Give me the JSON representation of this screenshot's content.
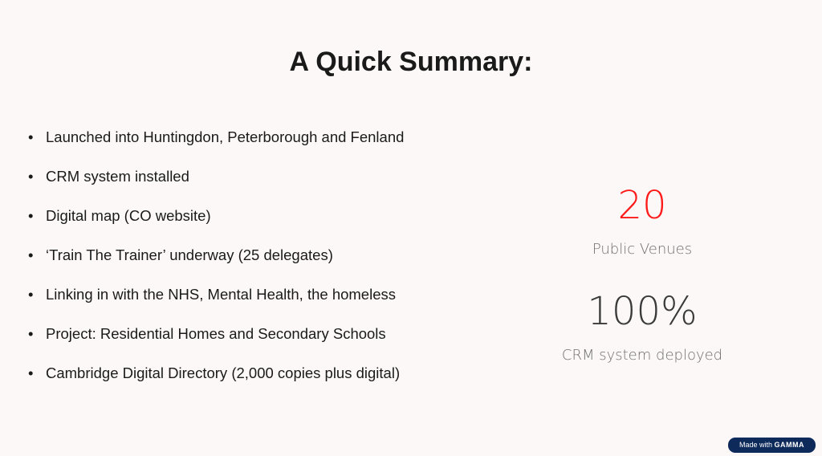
{
  "title": "A Quick Summary:",
  "bullets": [
    "Launched into Huntingdon, Peterborough and Fenland",
    "CRM system installed",
    "Digital map (CO website)",
    "‘Train The Trainer’ underway (25 delegates)",
    "Linking in with the NHS, Mental Health, the homeless",
    "Project: Residential Homes and Secondary Schools",
    "Cambridge Digital Directory (2,000 copies plus digital)"
  ],
  "bullet_glyph": "•",
  "stats": [
    {
      "value": "20",
      "label": "Public Venues",
      "color": "#ff1a1a"
    },
    {
      "value": "100%",
      "label": "CRM system deployed",
      "color": "#3a3a3a"
    }
  ],
  "badge": {
    "prefix": "Made with",
    "brand": "GAMMA",
    "color": "#0e2a5b"
  }
}
